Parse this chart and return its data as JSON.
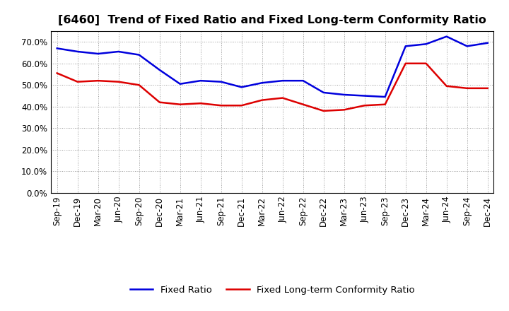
{
  "title": "[6460]  Trend of Fixed Ratio and Fixed Long-term Conformity Ratio",
  "x_labels": [
    "Sep-19",
    "Dec-19",
    "Mar-20",
    "Jun-20",
    "Sep-20",
    "Dec-20",
    "Mar-21",
    "Jun-21",
    "Sep-21",
    "Dec-21",
    "Mar-22",
    "Jun-22",
    "Sep-22",
    "Dec-22",
    "Mar-23",
    "Jun-23",
    "Sep-23",
    "Dec-23",
    "Mar-24",
    "Jun-24",
    "Sep-24",
    "Dec-24"
  ],
  "fixed_ratio": [
    67.0,
    65.5,
    64.5,
    65.5,
    64.0,
    57.0,
    50.5,
    52.0,
    51.5,
    49.0,
    51.0,
    52.0,
    52.0,
    46.5,
    45.5,
    45.0,
    44.5,
    68.0,
    69.0,
    72.5,
    68.0,
    69.5
  ],
  "fixed_lt_ratio": [
    55.5,
    51.5,
    52.0,
    51.5,
    50.0,
    42.0,
    41.0,
    41.5,
    40.5,
    40.5,
    43.0,
    44.0,
    41.0,
    38.0,
    38.5,
    40.5,
    41.0,
    60.0,
    60.0,
    49.5,
    48.5,
    48.5
  ],
  "fixed_ratio_color": "#0000dd",
  "fixed_lt_ratio_color": "#dd0000",
  "line_width": 1.8,
  "ylim": [
    0,
    75
  ],
  "yticks": [
    0.0,
    10.0,
    20.0,
    30.0,
    40.0,
    50.0,
    60.0,
    70.0
  ],
  "bg_color": "#ffffff",
  "plot_bg_color": "#ffffff",
  "grid_color": "#999999",
  "title_fontsize": 11.5,
  "tick_fontsize": 8.5,
  "legend_fontsize": 9.5
}
